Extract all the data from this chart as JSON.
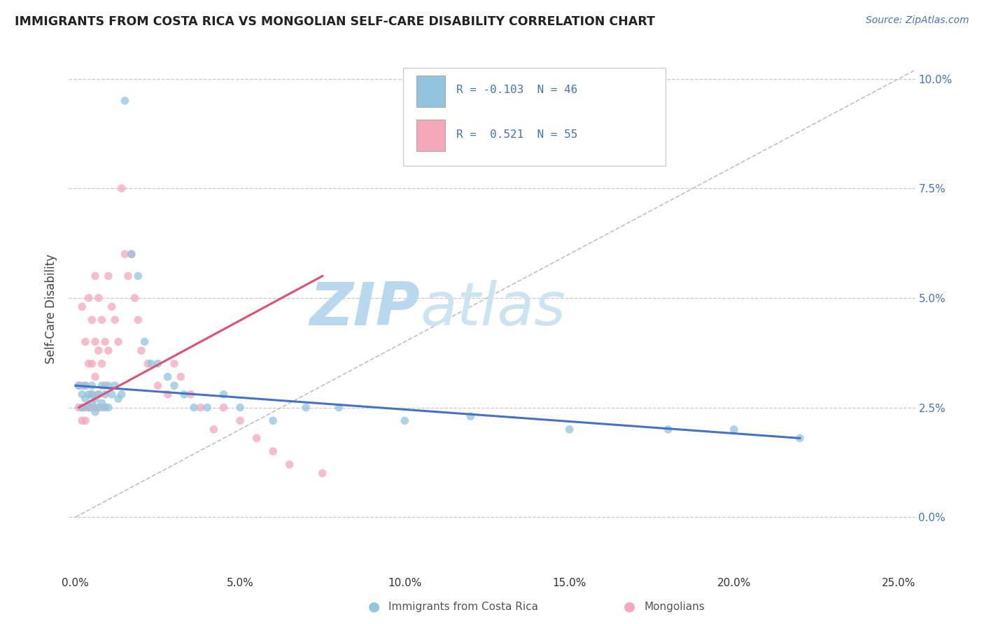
{
  "title": "IMMIGRANTS FROM COSTA RICA VS MONGOLIAN SELF-CARE DISABILITY CORRELATION CHART",
  "source": "Source: ZipAtlas.com",
  "ylabel": "Self-Care Disability",
  "ytick_vals": [
    0.0,
    0.025,
    0.05,
    0.075,
    0.1
  ],
  "ytick_labels": [
    "0.0%",
    "2.5%",
    "5.0%",
    "7.5%",
    "10.0%"
  ],
  "xtick_vals": [
    0.0,
    0.05,
    0.1,
    0.15,
    0.2,
    0.25
  ],
  "xtick_labels": [
    "0.0%",
    "5.0%",
    "10.0%",
    "15.0%",
    "20.0%",
    "25.0%"
  ],
  "xlim": [
    -0.002,
    0.255
  ],
  "ylim": [
    -0.013,
    0.108
  ],
  "legend_label1": "Immigrants from Costa Rica",
  "legend_label2": "Mongolians",
  "r1": "-0.103",
  "n1": "46",
  "r2": "0.521",
  "n2": "55",
  "color_blue": "#92c5de",
  "color_pink": "#f4a9bb",
  "color_blue_line": "#4472c4",
  "color_pink_line": "#e05070",
  "watermark_color": "#cde4f0",
  "background_color": "#ffffff",
  "grid_color": "#c8c8c8",
  "blue_x": [
    0.001,
    0.002,
    0.002,
    0.003,
    0.003,
    0.004,
    0.004,
    0.005,
    0.005,
    0.005,
    0.006,
    0.006,
    0.007,
    0.007,
    0.008,
    0.008,
    0.009,
    0.009,
    0.01,
    0.01,
    0.011,
    0.012,
    0.013,
    0.014,
    0.015,
    0.017,
    0.019,
    0.021,
    0.023,
    0.025,
    0.028,
    0.03,
    0.033,
    0.036,
    0.04,
    0.045,
    0.05,
    0.06,
    0.07,
    0.08,
    0.1,
    0.12,
    0.15,
    0.18,
    0.2,
    0.22
  ],
  "blue_y": [
    0.03,
    0.025,
    0.028,
    0.027,
    0.03,
    0.025,
    0.028,
    0.026,
    0.028,
    0.03,
    0.024,
    0.027,
    0.025,
    0.028,
    0.026,
    0.03,
    0.025,
    0.028,
    0.03,
    0.025,
    0.028,
    0.03,
    0.027,
    0.028,
    0.095,
    0.06,
    0.055,
    0.04,
    0.035,
    0.035,
    0.032,
    0.03,
    0.028,
    0.025,
    0.025,
    0.028,
    0.025,
    0.022,
    0.025,
    0.025,
    0.022,
    0.023,
    0.02,
    0.02,
    0.02,
    0.018
  ],
  "pink_x": [
    0.001,
    0.001,
    0.002,
    0.002,
    0.002,
    0.002,
    0.003,
    0.003,
    0.003,
    0.003,
    0.004,
    0.004,
    0.004,
    0.005,
    0.005,
    0.005,
    0.005,
    0.006,
    0.006,
    0.006,
    0.006,
    0.007,
    0.007,
    0.007,
    0.008,
    0.008,
    0.008,
    0.009,
    0.009,
    0.01,
    0.01,
    0.011,
    0.012,
    0.013,
    0.014,
    0.015,
    0.016,
    0.017,
    0.018,
    0.019,
    0.02,
    0.022,
    0.025,
    0.028,
    0.03,
    0.032,
    0.035,
    0.038,
    0.042,
    0.045,
    0.05,
    0.055,
    0.06,
    0.065,
    0.075
  ],
  "pink_y": [
    0.03,
    0.025,
    0.048,
    0.03,
    0.025,
    0.022,
    0.04,
    0.03,
    0.025,
    0.022,
    0.05,
    0.035,
    0.025,
    0.045,
    0.035,
    0.028,
    0.025,
    0.055,
    0.04,
    0.032,
    0.025,
    0.05,
    0.038,
    0.028,
    0.045,
    0.035,
    0.025,
    0.04,
    0.03,
    0.055,
    0.038,
    0.048,
    0.045,
    0.04,
    0.075,
    0.06,
    0.055,
    0.06,
    0.05,
    0.045,
    0.038,
    0.035,
    0.03,
    0.028,
    0.035,
    0.032,
    0.028,
    0.025,
    0.02,
    0.025,
    0.022,
    0.018,
    0.015,
    0.012,
    0.01
  ]
}
